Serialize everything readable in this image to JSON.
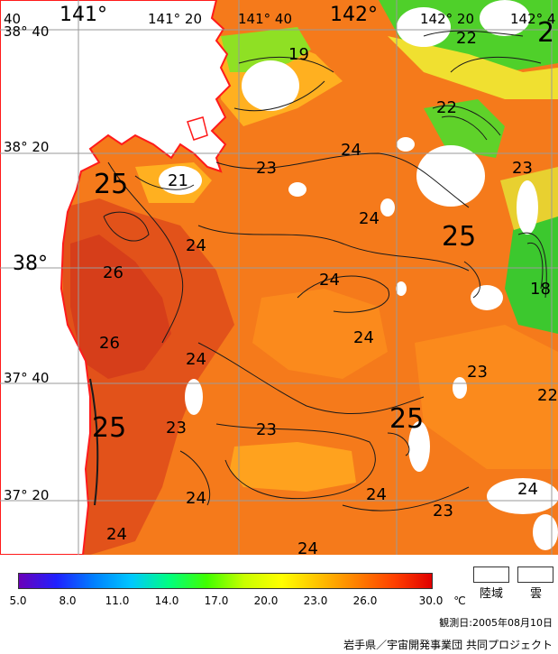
{
  "map": {
    "grid_labels": [
      {
        "id": "lon-141",
        "text": "141°",
        "big": true
      },
      {
        "id": "lon-141-20",
        "text": "141° 20"
      },
      {
        "id": "lon-141-40",
        "text": "141° 40"
      },
      {
        "id": "lon-142",
        "text": "142°",
        "big": true
      },
      {
        "id": "lon-142-20",
        "text": "142° 20"
      },
      {
        "id": "lon-142-40",
        "text": "142° 4"
      },
      {
        "id": "lon-140-40",
        "text": "40"
      },
      {
        "id": "lat-38-40",
        "text": "38° 40"
      },
      {
        "id": "lat-38-20",
        "text": "38° 20"
      },
      {
        "id": "lat-38",
        "text": "38°",
        "big": true
      },
      {
        "id": "lat-37-40",
        "text": "37° 40"
      },
      {
        "id": "lat-37-20",
        "text": "37° 20"
      }
    ],
    "contour_labels": [
      "19",
      "22",
      "22",
      "23",
      "24",
      "25",
      "21",
      "24",
      "24",
      "25",
      "26",
      "24",
      "23",
      "18",
      "26",
      "24",
      "24",
      "23",
      "22",
      "25",
      "23",
      "25",
      "23",
      "24",
      "24",
      "24",
      "23",
      "24",
      "24",
      "2"
    ],
    "colors": {
      "land": "#ffffff",
      "coast": "#ff1a1a",
      "grid": "#999999",
      "sst_23": "#ff9a1e",
      "sst_24": "#f97c1a",
      "sst_25": "#ef6a16",
      "sst_26": "#e0481a",
      "sst_20": "#e8e030",
      "sst_18": "#5fd22a",
      "cloud": "#ffffff"
    }
  },
  "legend": {
    "ticks": [
      "5.0",
      "8.0",
      "11.0",
      "14.0",
      "17.0",
      "20.0",
      "23.0",
      "26.0",
      "30.0"
    ],
    "unit": "℃",
    "land_label": "陸域",
    "cloud_label": "雲",
    "gradient": [
      "#6a00b8",
      "#2020ff",
      "#0080ff",
      "#00c8ff",
      "#00ff80",
      "#40ff00",
      "#c8ff00",
      "#ffff00",
      "#ffc000",
      "#ff8000",
      "#ff4000",
      "#e00000"
    ]
  },
  "observation_date": "観測日:2005年08月10日",
  "credit": "岩手県／宇宙開発事業団 共同プロジェクト"
}
